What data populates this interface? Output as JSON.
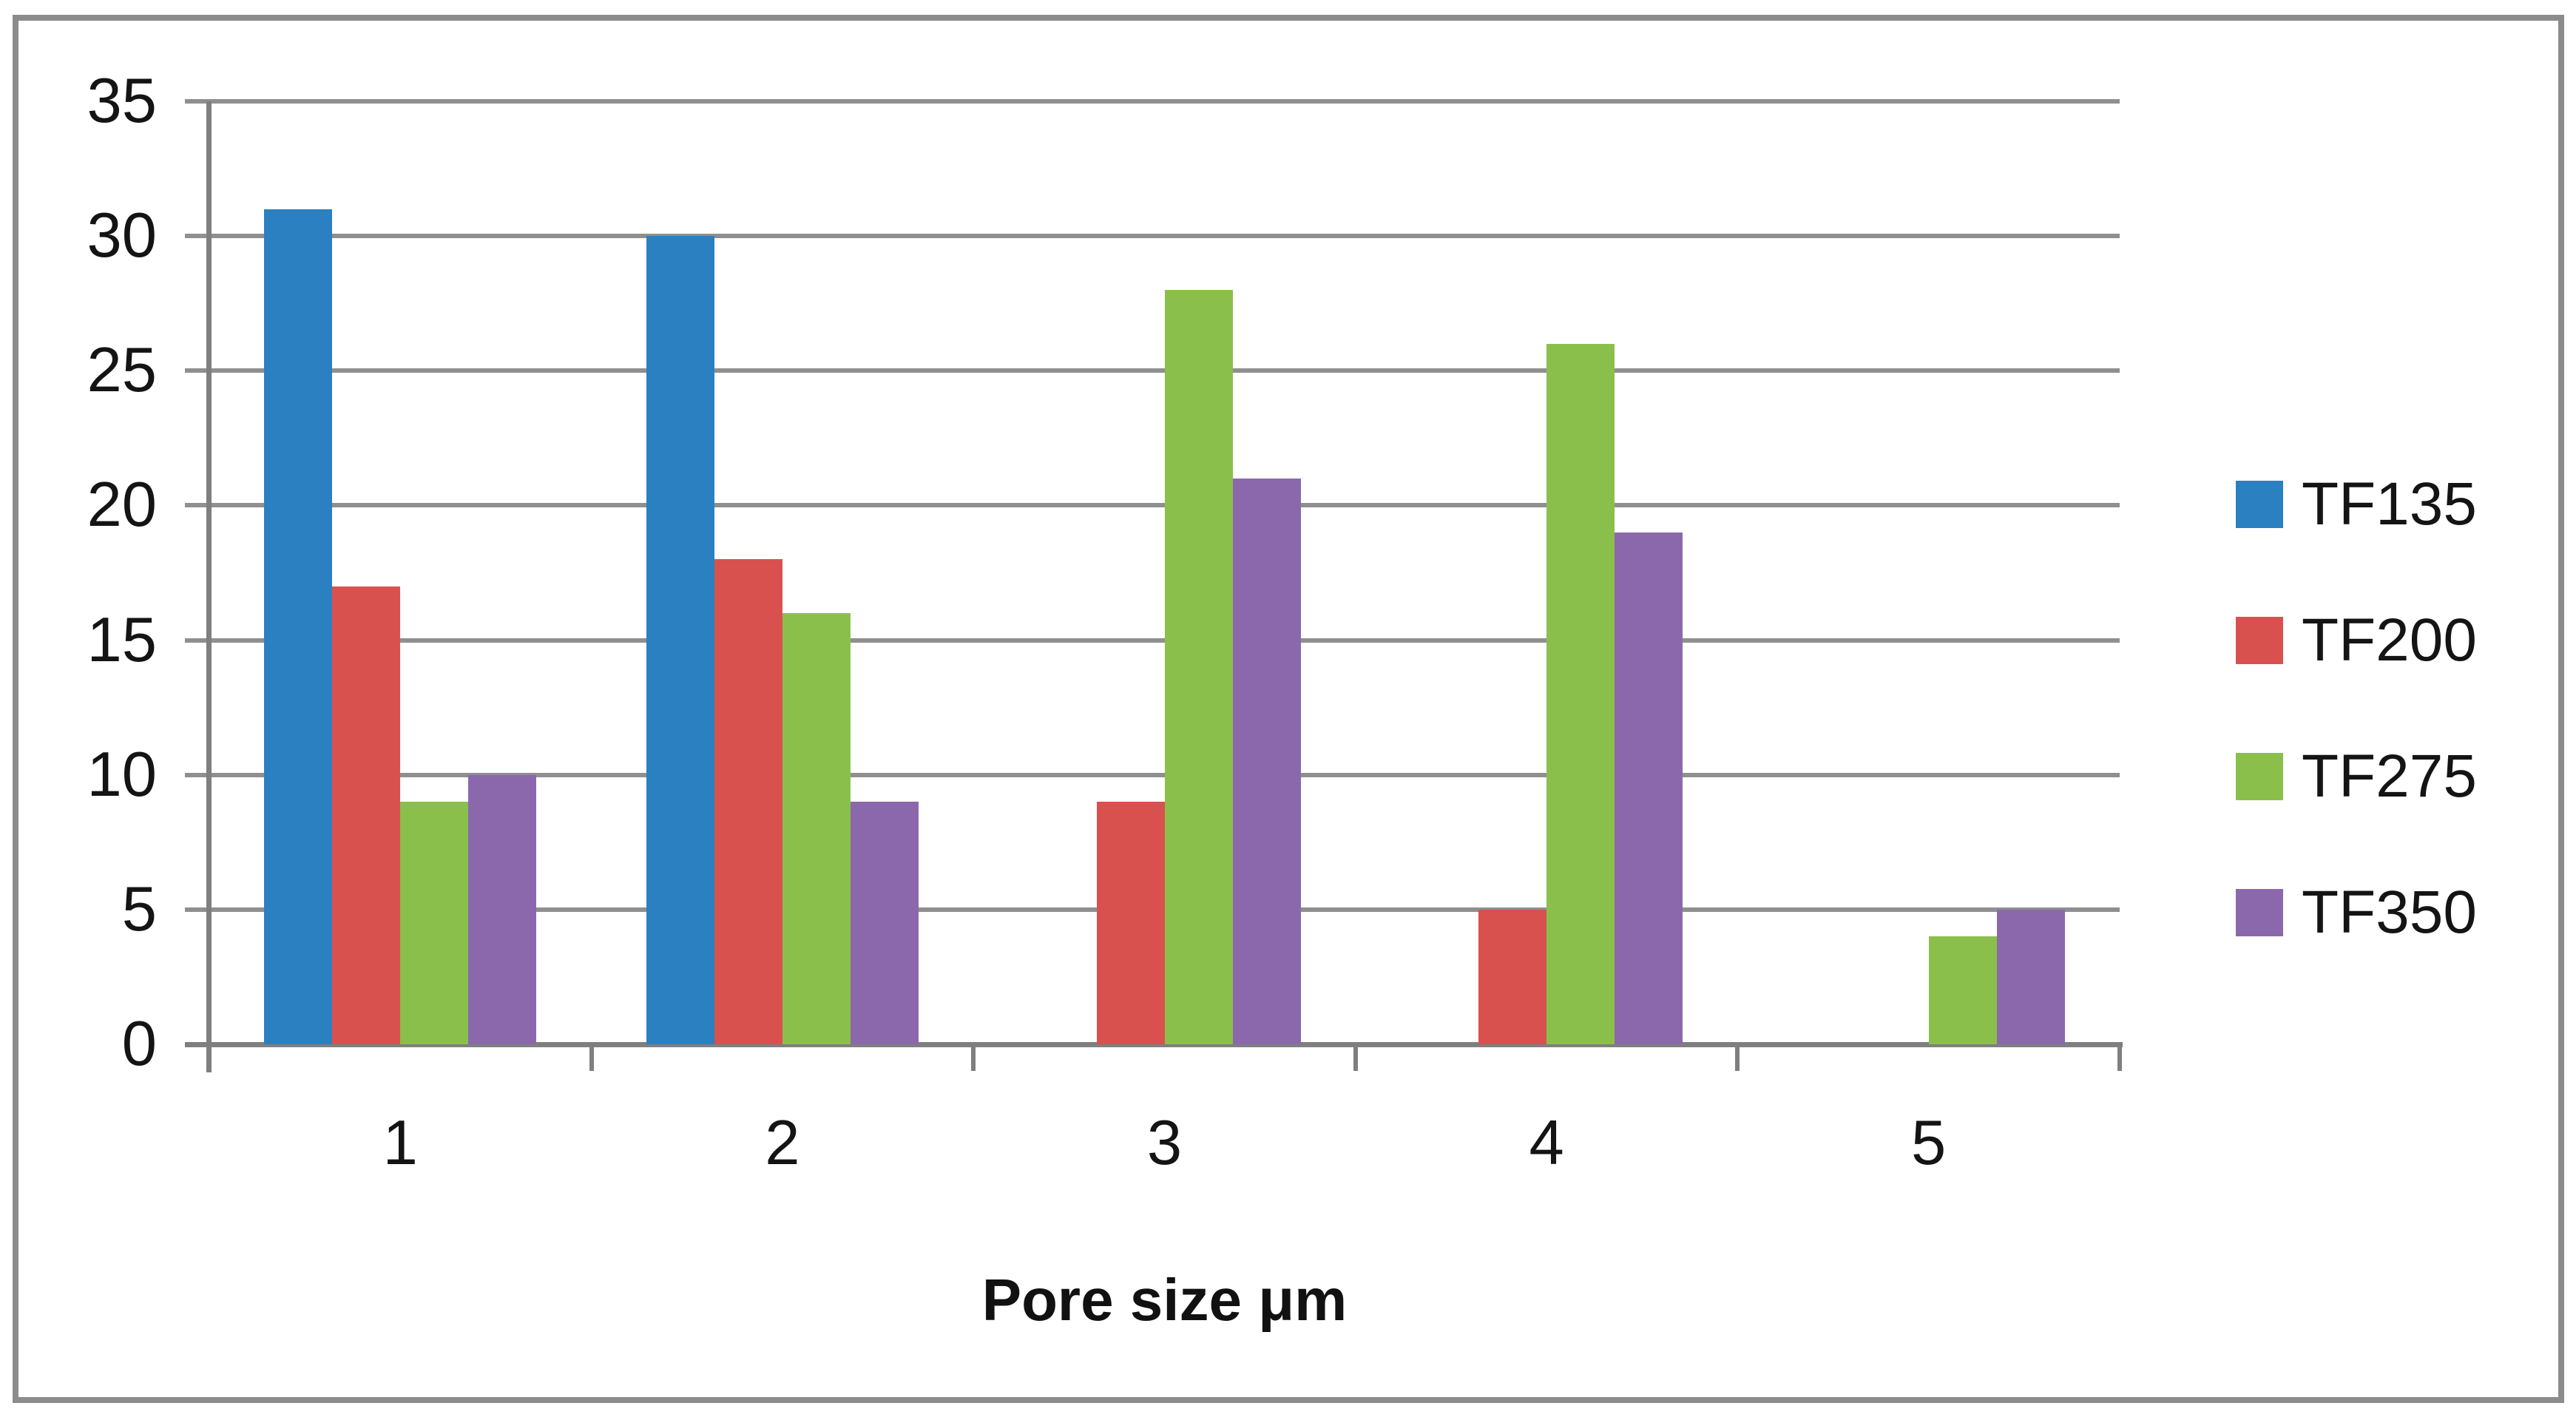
{
  "chart_data": {
    "type": "bar",
    "title": "",
    "xlabel": "Pore size μm",
    "ylabel": "",
    "categories": [
      "1",
      "2",
      "3",
      "4",
      "5"
    ],
    "series": [
      {
        "name": "TF135",
        "color": "#2A80C0",
        "values": [
          31,
          30,
          0,
          0,
          0
        ]
      },
      {
        "name": "TF200",
        "color": "#D9514E",
        "values": [
          17,
          18,
          9,
          5,
          0
        ]
      },
      {
        "name": "TF275",
        "color": "#8BBF4C",
        "values": [
          9,
          16,
          28,
          26,
          4
        ]
      },
      {
        "name": "TF350",
        "color": "#8B68AC",
        "values": [
          10,
          9,
          21,
          19,
          5
        ]
      }
    ],
    "ylim": [
      0,
      35
    ],
    "ytick_step": 5,
    "yticks": [
      0,
      5,
      10,
      15,
      20,
      25,
      30,
      35
    ],
    "grid": true,
    "legend_position": "right",
    "colors": {
      "grid": "#8F8F8F",
      "axis": "#7F7F7F",
      "frame_border": "#8C8C8C",
      "text": "#141414"
    }
  }
}
